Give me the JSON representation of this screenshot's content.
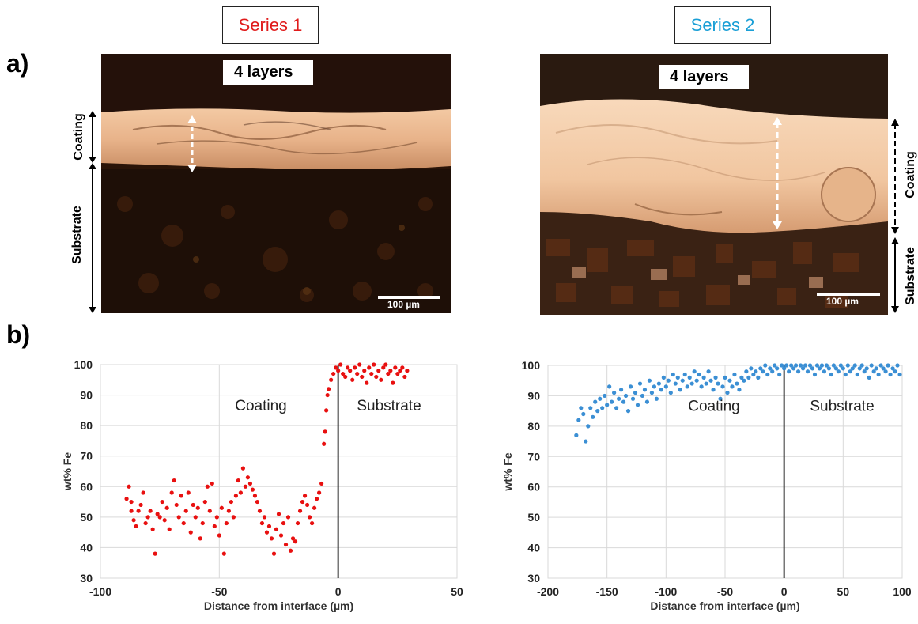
{
  "header": {
    "series1": "Series 1",
    "series2": "Series 2",
    "series1_color": "#e01b1b",
    "series2_color": "#1a9fd6",
    "panel_a": "a)",
    "panel_b": "b)"
  },
  "micrographs": [
    {
      "layers": "4 layers",
      "scale_bar": "100 µm",
      "coating_label": "Coating",
      "substrate_label": "Substrate"
    },
    {
      "layers": "4 layers",
      "scale_bar": "100 µm",
      "coating_label": "Coating",
      "substrate_label": "Substrate"
    }
  ],
  "chart_data": [
    {
      "type": "scatter",
      "xlabel": "Distance from interface (µm)",
      "ylabel": "wt% Fe",
      "xlim": [
        -100,
        50
      ],
      "ylim": [
        30,
        100
      ],
      "x_ticks": [
        -100,
        -50,
        0,
        50
      ],
      "y_ticks": [
        30,
        40,
        50,
        60,
        70,
        80,
        90,
        100
      ],
      "grid": true,
      "annotations": [
        "Coating",
        "Substrate"
      ],
      "color": "#e81010",
      "series": [
        {
          "points": [
            [
              -89,
              56
            ],
            [
              -88,
              60
            ],
            [
              -87,
              52
            ],
            [
              -87,
              55
            ],
            [
              -86,
              49
            ],
            [
              -85,
              47
            ],
            [
              -84,
              52
            ],
            [
              -83,
              54
            ],
            [
              -82,
              58
            ],
            [
              -81,
              48
            ],
            [
              -80,
              50
            ],
            [
              -79,
              52
            ],
            [
              -78,
              46
            ],
            [
              -77,
              38
            ],
            [
              -76,
              51
            ],
            [
              -75,
              50
            ],
            [
              -74,
              55
            ],
            [
              -73,
              49
            ],
            [
              -72,
              53
            ],
            [
              -71,
              46
            ],
            [
              -70,
              58
            ],
            [
              -69,
              62
            ],
            [
              -68,
              54
            ],
            [
              -67,
              50
            ],
            [
              -66,
              57
            ],
            [
              -65,
              48
            ],
            [
              -64,
              52
            ],
            [
              -63,
              58
            ],
            [
              -62,
              45
            ],
            [
              -61,
              54
            ],
            [
              -60,
              50
            ],
            [
              -59,
              53
            ],
            [
              -58,
              43
            ],
            [
              -57,
              48
            ],
            [
              -56,
              55
            ],
            [
              -55,
              60
            ],
            [
              -54,
              52
            ],
            [
              -53,
              61
            ],
            [
              -52,
              47
            ],
            [
              -51,
              50
            ],
            [
              -50,
              44
            ],
            [
              -49,
              53
            ],
            [
              -48,
              38
            ],
            [
              -47,
              48
            ],
            [
              -46,
              52
            ],
            [
              -45,
              55
            ],
            [
              -44,
              50
            ],
            [
              -43,
              57
            ],
            [
              -42,
              62
            ],
            [
              -41,
              58
            ],
            [
              -40,
              66
            ],
            [
              -39,
              60
            ],
            [
              -38,
              63
            ],
            [
              -37,
              61
            ],
            [
              -36,
              59
            ],
            [
              -35,
              57
            ],
            [
              -34,
              55
            ],
            [
              -33,
              52
            ],
            [
              -32,
              48
            ],
            [
              -31,
              50
            ],
            [
              -30,
              45
            ],
            [
              -29,
              47
            ],
            [
              -28,
              43
            ],
            [
              -27,
              38
            ],
            [
              -26,
              46
            ],
            [
              -25,
              51
            ],
            [
              -24,
              44
            ],
            [
              -23,
              48
            ],
            [
              -22,
              41
            ],
            [
              -21,
              50
            ],
            [
              -20,
              39
            ],
            [
              -19,
              43
            ],
            [
              -18,
              42
            ],
            [
              -17,
              48
            ],
            [
              -16,
              52
            ],
            [
              -15,
              55
            ],
            [
              -14,
              57
            ],
            [
              -13,
              54
            ],
            [
              -12,
              50
            ],
            [
              -11,
              48
            ],
            [
              -10,
              53
            ],
            [
              -9,
              56
            ],
            [
              -8,
              58
            ],
            [
              -7,
              61
            ],
            [
              -6,
              74
            ],
            [
              -5.5,
              78
            ],
            [
              -5,
              85
            ],
            [
              -4.5,
              90
            ],
            [
              -4,
              92
            ],
            [
              -3,
              95
            ],
            [
              -2,
              97
            ],
            [
              -1,
              99
            ],
            [
              0,
              98
            ],
            [
              1,
              100
            ],
            [
              2,
              97
            ],
            [
              3,
              96
            ],
            [
              4,
              99
            ],
            [
              5,
              98
            ],
            [
              6,
              95
            ],
            [
              7,
              99
            ],
            [
              8,
              97
            ],
            [
              9,
              100
            ],
            [
              10,
              96
            ],
            [
              11,
              98
            ],
            [
              12,
              94
            ],
            [
              13,
              99
            ],
            [
              14,
              97
            ],
            [
              15,
              100
            ],
            [
              16,
              96
            ],
            [
              17,
              98
            ],
            [
              18,
              95
            ],
            [
              19,
              99
            ],
            [
              20,
              100
            ],
            [
              21,
              97
            ],
            [
              22,
              98
            ],
            [
              23,
              94
            ],
            [
              24,
              99
            ],
            [
              25,
              97
            ],
            [
              26,
              98
            ],
            [
              27,
              99
            ],
            [
              28,
              96
            ],
            [
              29,
              98
            ]
          ]
        }
      ]
    },
    {
      "type": "scatter",
      "xlabel": "Distance from interface (µm)",
      "ylabel": "wt% Fe",
      "xlim": [
        -200,
        100
      ],
      "ylim": [
        30,
        100
      ],
      "x_ticks": [
        -200,
        -150,
        -100,
        -50,
        0,
        50,
        100
      ],
      "y_ticks": [
        30,
        40,
        50,
        60,
        70,
        80,
        90,
        100
      ],
      "grid": true,
      "annotations": [
        "Coating",
        "Substrate"
      ],
      "color": "#3b8fd4",
      "series": [
        {
          "points": [
            [
              -176,
              77
            ],
            [
              -174,
              82
            ],
            [
              -172,
              86
            ],
            [
              -170,
              84
            ],
            [
              -168,
              75
            ],
            [
              -166,
              80
            ],
            [
              -164,
              86
            ],
            [
              -162,
              83
            ],
            [
              -160,
              88
            ],
            [
              -158,
              85
            ],
            [
              -156,
              89
            ],
            [
              -154,
              86
            ],
            [
              -152,
              90
            ],
            [
              -150,
              87
            ],
            [
              -148,
              93
            ],
            [
              -146,
              88
            ],
            [
              -144,
              91
            ],
            [
              -142,
              86
            ],
            [
              -140,
              89
            ],
            [
              -138,
              92
            ],
            [
              -136,
              88
            ],
            [
              -134,
              90
            ],
            [
              -132,
              85
            ],
            [
              -130,
              93
            ],
            [
              -128,
              89
            ],
            [
              -126,
              91
            ],
            [
              -124,
              87
            ],
            [
              -122,
              94
            ],
            [
              -120,
              90
            ],
            [
              -118,
              92
            ],
            [
              -116,
              88
            ],
            [
              -114,
              95
            ],
            [
              -112,
              91
            ],
            [
              -110,
              93
            ],
            [
              -108,
              89
            ],
            [
              -106,
              94
            ],
            [
              -104,
              92
            ],
            [
              -102,
              96
            ],
            [
              -100,
              93
            ],
            [
              -98,
              95
            ],
            [
              -96,
              91
            ],
            [
              -94,
              97
            ],
            [
              -92,
              94
            ],
            [
              -90,
              96
            ],
            [
              -88,
              92
            ],
            [
              -86,
              95
            ],
            [
              -84,
              97
            ],
            [
              -82,
              93
            ],
            [
              -80,
              96
            ],
            [
              -78,
              94
            ],
            [
              -76,
              98
            ],
            [
              -74,
              95
            ],
            [
              -72,
              97
            ],
            [
              -70,
              93
            ],
            [
              -68,
              96
            ],
            [
              -66,
              94
            ],
            [
              -64,
              98
            ],
            [
              -62,
              95
            ],
            [
              -60,
              92
            ],
            [
              -58,
              96
            ],
            [
              -56,
              94
            ],
            [
              -54,
              89
            ],
            [
              -52,
              93
            ],
            [
              -50,
              96
            ],
            [
              -48,
              91
            ],
            [
              -46,
              95
            ],
            [
              -44,
              93
            ],
            [
              -42,
              97
            ],
            [
              -40,
              94
            ],
            [
              -38,
              92
            ],
            [
              -36,
              96
            ],
            [
              -34,
              95
            ],
            [
              -32,
              98
            ],
            [
              -30,
              96
            ],
            [
              -28,
              99
            ],
            [
              -26,
              97
            ],
            [
              -24,
              98
            ],
            [
              -22,
              96
            ],
            [
              -20,
              99
            ],
            [
              -18,
              98
            ],
            [
              -16,
              100
            ],
            [
              -14,
              97
            ],
            [
              -12,
              99
            ],
            [
              -10,
              98
            ],
            [
              -8,
              100
            ],
            [
              -6,
              99
            ],
            [
              -4,
              97
            ],
            [
              -2,
              100
            ],
            [
              0,
              99
            ],
            [
              2,
              100
            ],
            [
              4,
              98
            ],
            [
              6,
              100
            ],
            [
              8,
              99
            ],
            [
              10,
              100
            ],
            [
              12,
              98
            ],
            [
              14,
              100
            ],
            [
              16,
              99
            ],
            [
              18,
              100
            ],
            [
              20,
              98
            ],
            [
              22,
              100
            ],
            [
              24,
              99
            ],
            [
              26,
              97
            ],
            [
              28,
              100
            ],
            [
              30,
              99
            ],
            [
              32,
              100
            ],
            [
              34,
              98
            ],
            [
              36,
              100
            ],
            [
              38,
              99
            ],
            [
              40,
              97
            ],
            [
              42,
              100
            ],
            [
              44,
              99
            ],
            [
              46,
              98
            ],
            [
              48,
              100
            ],
            [
              50,
              99
            ],
            [
              52,
              97
            ],
            [
              54,
              100
            ],
            [
              56,
              98
            ],
            [
              58,
              99
            ],
            [
              60,
              100
            ],
            [
              62,
              97
            ],
            [
              64,
              99
            ],
            [
              66,
              100
            ],
            [
              68,
              98
            ],
            [
              70,
              99
            ],
            [
              72,
              96
            ],
            [
              74,
              100
            ],
            [
              76,
              98
            ],
            [
              78,
              99
            ],
            [
              80,
              97
            ],
            [
              82,
              100
            ],
            [
              84,
              99
            ],
            [
              86,
              98
            ],
            [
              88,
              100
            ],
            [
              90,
              97
            ],
            [
              92,
              99
            ],
            [
              94,
              98
            ],
            [
              96,
              100
            ],
            [
              98,
              97
            ]
          ]
        }
      ]
    }
  ]
}
